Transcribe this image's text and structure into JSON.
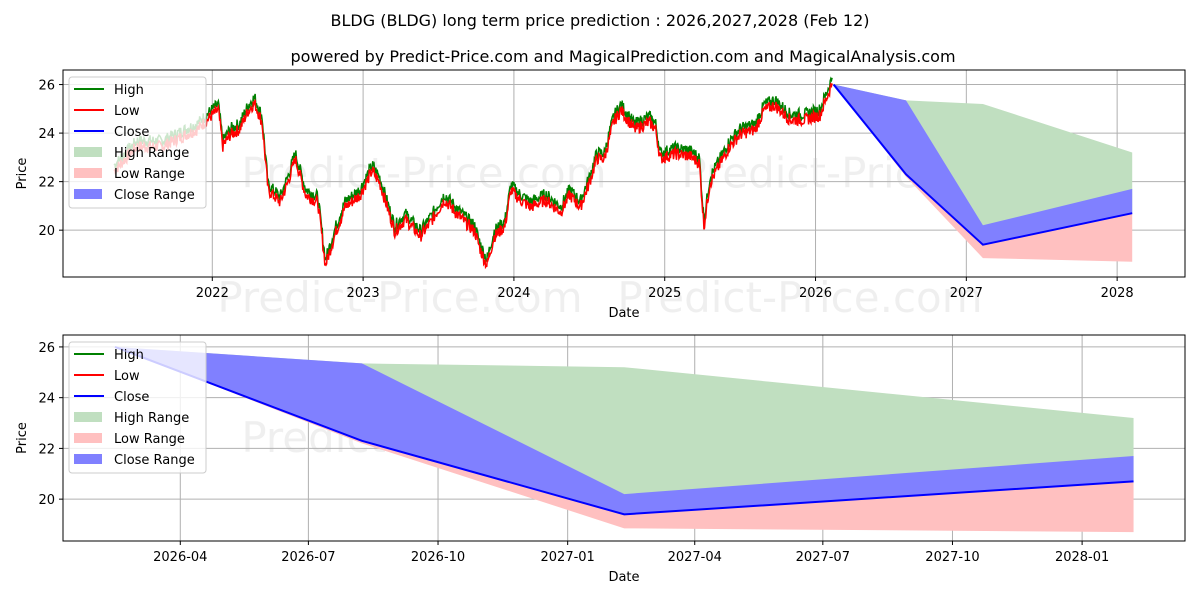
{
  "title": "BLDG (BLDG) long term price prediction : 2026,2027,2028 (Feb 12)",
  "subtitle": "powered by Predict-Price.com and MagicalPrediction.com and MagicalAnalysis.com",
  "watermark": "Predict-Price.com",
  "colors": {
    "high": "#008000",
    "low": "#ff0000",
    "close": "#0000ff",
    "high_range": "#c0dfc0",
    "low_range": "#ffc0c0",
    "close_range": "#8080ff"
  },
  "legend": [
    "High",
    "Low",
    "Close",
    "High Range",
    "Low Range",
    "Close Range"
  ],
  "chart_data": [
    {
      "type": "line",
      "xlabel": "Date",
      "ylabel": "Price",
      "xlim": [
        2021.01,
        2028.45
      ],
      "ylim": [
        18.07,
        26.6
      ],
      "xticks": [
        {
          "v": 2022,
          "label": "2022"
        },
        {
          "v": 2023,
          "label": "2023"
        },
        {
          "v": 2024,
          "label": "2024"
        },
        {
          "v": 2025,
          "label": "2025"
        },
        {
          "v": 2026,
          "label": "2026"
        },
        {
          "v": 2027,
          "label": "2027"
        },
        {
          "v": 2028,
          "label": "2028"
        }
      ],
      "yticks": [
        20,
        22,
        24,
        26
      ],
      "grid": true,
      "legend_position": "top-left",
      "show_history": true
    },
    {
      "type": "line",
      "xlabel": "Date",
      "ylabel": "Price",
      "xlim": [
        2026.019,
        2028.2
      ],
      "ylim": [
        18.35,
        26.47
      ],
      "xticks": [
        {
          "v": 2026.247,
          "label": "2026-04"
        },
        {
          "v": 2026.496,
          "label": "2026-07"
        },
        {
          "v": 2026.748,
          "label": "2026-10"
        },
        {
          "v": 2027.0,
          "label": "2027-01"
        },
        {
          "v": 2027.247,
          "label": "2027-04"
        },
        {
          "v": 2027.496,
          "label": "2027-07"
        },
        {
          "v": 2027.748,
          "label": "2027-10"
        },
        {
          "v": 2028.0,
          "label": "2028-01"
        }
      ],
      "yticks": [
        20,
        22,
        24,
        26
      ],
      "grid": true,
      "legend_position": "top-left",
      "show_history": false
    }
  ],
  "history": {
    "spread": 0.18,
    "points": [
      [
        2021.35,
        22.5
      ],
      [
        2021.5,
        23.5
      ],
      [
        2021.67,
        23.5
      ],
      [
        2021.83,
        24.0
      ],
      [
        2021.9,
        24.2
      ],
      [
        2022.0,
        24.8
      ],
      [
        2022.04,
        25.0
      ],
      [
        2022.07,
        23.5
      ],
      [
        2022.12,
        24.0
      ],
      [
        2022.18,
        24.2
      ],
      [
        2022.24,
        25.0
      ],
      [
        2022.28,
        25.3
      ],
      [
        2022.33,
        24.5
      ],
      [
        2022.37,
        21.7
      ],
      [
        2022.45,
        21.2
      ],
      [
        2022.5,
        22.0
      ],
      [
        2022.55,
        23.0
      ],
      [
        2022.62,
        21.5
      ],
      [
        2022.7,
        21.2
      ],
      [
        2022.75,
        18.6
      ],
      [
        2022.82,
        20.0
      ],
      [
        2022.88,
        21.0
      ],
      [
        2022.98,
        21.5
      ],
      [
        2023.06,
        22.5
      ],
      [
        2023.11,
        22.0
      ],
      [
        2023.21,
        20.0
      ],
      [
        2023.28,
        20.5
      ],
      [
        2023.38,
        19.8
      ],
      [
        2023.44,
        20.3
      ],
      [
        2023.54,
        21.3
      ],
      [
        2023.64,
        20.6
      ],
      [
        2023.74,
        20.0
      ],
      [
        2023.78,
        19.2
      ],
      [
        2023.82,
        18.6
      ],
      [
        2023.87,
        19.8
      ],
      [
        2023.94,
        20.2
      ],
      [
        2023.98,
        21.7
      ],
      [
        2024.04,
        21.3
      ],
      [
        2024.11,
        21.0
      ],
      [
        2024.21,
        21.3
      ],
      [
        2024.31,
        20.8
      ],
      [
        2024.37,
        21.5
      ],
      [
        2024.44,
        21.0
      ],
      [
        2024.5,
        22.0
      ],
      [
        2024.55,
        23.0
      ],
      [
        2024.6,
        23.0
      ],
      [
        2024.66,
        24.5
      ],
      [
        2024.71,
        25.0
      ],
      [
        2024.8,
        24.2
      ],
      [
        2024.9,
        24.5
      ],
      [
        2024.94,
        24.2
      ],
      [
        2024.97,
        23.0
      ],
      [
        2025.07,
        23.2
      ],
      [
        2025.17,
        23.1
      ],
      [
        2025.23,
        22.8
      ],
      [
        2025.26,
        20.2
      ],
      [
        2025.3,
        22.0
      ],
      [
        2025.36,
        22.7
      ],
      [
        2025.43,
        23.5
      ],
      [
        2025.5,
        24.0
      ],
      [
        2025.6,
        24.2
      ],
      [
        2025.66,
        25.0
      ],
      [
        2025.73,
        25.2
      ],
      [
        2025.83,
        24.6
      ],
      [
        2025.93,
        24.6
      ],
      [
        2026.03,
        24.8
      ],
      [
        2026.08,
        25.6
      ],
      [
        2026.11,
        26.1
      ]
    ]
  },
  "forecast": {
    "x": [
      2026.12,
      2026.6,
      2027.11,
      2028.1
    ],
    "close": [
      26.0,
      22.3,
      19.4,
      20.7
    ],
    "close_upper": [
      26.0,
      25.35,
      20.2,
      21.7
    ],
    "high_upper": [
      26.0,
      25.35,
      25.2,
      23.2
    ],
    "low_lower": [
      26.0,
      22.2,
      18.85,
      18.7
    ]
  }
}
